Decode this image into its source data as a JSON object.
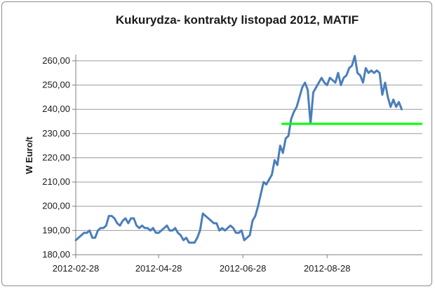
{
  "chart_data": {
    "type": "line",
    "title": "Kukurydza- kontrakty listopad 2012, MATIF",
    "xlabel": "",
    "ylabel": "W Euro/t",
    "ylim": [
      180,
      262
    ],
    "y_ticks": [
      180,
      190,
      200,
      210,
      220,
      230,
      240,
      250,
      260
    ],
    "y_tick_labels": [
      "180,00",
      "190,00",
      "200,00",
      "210,00",
      "220,00",
      "230,00",
      "240,00",
      "250,00",
      "260,00"
    ],
    "x_tick_labels": [
      "2012-02-28",
      "2012-04-28",
      "2012-06-28",
      "2012-08-28"
    ],
    "grid": true,
    "colors": {
      "series": "#4a7ebb",
      "reference": "#00ff00",
      "grid": "#9b9b9b",
      "axis": "#7f7f7f"
    },
    "series": [
      {
        "values": [
          [
            "2012-02-28",
            186
          ],
          [
            "2012-03-01",
            187
          ],
          [
            "2012-03-03",
            188
          ],
          [
            "2012-03-05",
            189
          ],
          [
            "2012-03-07",
            189
          ],
          [
            "2012-03-09",
            190
          ],
          [
            "2012-03-11",
            187
          ],
          [
            "2012-03-13",
            187
          ],
          [
            "2012-03-15",
            190
          ],
          [
            "2012-03-17",
            191
          ],
          [
            "2012-03-19",
            191
          ],
          [
            "2012-03-21",
            192
          ],
          [
            "2012-03-23",
            196
          ],
          [
            "2012-03-25",
            196
          ],
          [
            "2012-03-27",
            195
          ],
          [
            "2012-03-29",
            193
          ],
          [
            "2012-03-31",
            192
          ],
          [
            "2012-04-02",
            194
          ],
          [
            "2012-04-04",
            195
          ],
          [
            "2012-04-06",
            193
          ],
          [
            "2012-04-08",
            195
          ],
          [
            "2012-04-10",
            195
          ],
          [
            "2012-04-12",
            192
          ],
          [
            "2012-04-14",
            191
          ],
          [
            "2012-04-16",
            192
          ],
          [
            "2012-04-18",
            191
          ],
          [
            "2012-04-20",
            191
          ],
          [
            "2012-04-22",
            190
          ],
          [
            "2012-04-24",
            191
          ],
          [
            "2012-04-26",
            189
          ],
          [
            "2012-04-28",
            189
          ],
          [
            "2012-04-30",
            190
          ],
          [
            "2012-05-02",
            191
          ],
          [
            "2012-05-04",
            192
          ],
          [
            "2012-05-06",
            190
          ],
          [
            "2012-05-08",
            190
          ],
          [
            "2012-05-10",
            191
          ],
          [
            "2012-05-12",
            189
          ],
          [
            "2012-05-14",
            188
          ],
          [
            "2012-05-16",
            186
          ],
          [
            "2012-05-18",
            187
          ],
          [
            "2012-05-20",
            185
          ],
          [
            "2012-05-22",
            185
          ],
          [
            "2012-05-24",
            185
          ],
          [
            "2012-05-26",
            187
          ],
          [
            "2012-05-28",
            190
          ],
          [
            "2012-05-30",
            197
          ],
          [
            "2012-06-01",
            196
          ],
          [
            "2012-06-03",
            195
          ],
          [
            "2012-06-05",
            194
          ],
          [
            "2012-06-07",
            193
          ],
          [
            "2012-06-09",
            193
          ],
          [
            "2012-06-11",
            190
          ],
          [
            "2012-06-13",
            191
          ],
          [
            "2012-06-15",
            190
          ],
          [
            "2012-06-17",
            191
          ],
          [
            "2012-06-19",
            192
          ],
          [
            "2012-06-21",
            191
          ],
          [
            "2012-06-23",
            189
          ],
          [
            "2012-06-25",
            189
          ],
          [
            "2012-06-27",
            190
          ],
          [
            "2012-06-29",
            186
          ],
          [
            "2012-07-01",
            187
          ],
          [
            "2012-07-03",
            188
          ],
          [
            "2012-07-05",
            194
          ],
          [
            "2012-07-07",
            196
          ],
          [
            "2012-07-09",
            200
          ],
          [
            "2012-07-11",
            205
          ],
          [
            "2012-07-13",
            210
          ],
          [
            "2012-07-15",
            209
          ],
          [
            "2012-07-17",
            211
          ],
          [
            "2012-07-19",
            213
          ],
          [
            "2012-07-21",
            219
          ],
          [
            "2012-07-23",
            217
          ],
          [
            "2012-07-25",
            225
          ],
          [
            "2012-07-27",
            222
          ],
          [
            "2012-07-29",
            228
          ],
          [
            "2012-07-31",
            229
          ],
          [
            "2012-08-02",
            236
          ],
          [
            "2012-08-04",
            239
          ],
          [
            "2012-08-06",
            241
          ],
          [
            "2012-08-08",
            245
          ],
          [
            "2012-08-10",
            249
          ],
          [
            "2012-08-12",
            251
          ],
          [
            "2012-08-14",
            248
          ],
          [
            "2012-08-16",
            234
          ],
          [
            "2012-08-18",
            247
          ],
          [
            "2012-08-20",
            249
          ],
          [
            "2012-08-22",
            251
          ],
          [
            "2012-08-24",
            253
          ],
          [
            "2012-08-26",
            251
          ],
          [
            "2012-08-28",
            250
          ],
          [
            "2012-08-30",
            253
          ],
          [
            "2012-09-01",
            252
          ],
          [
            "2012-09-03",
            251
          ],
          [
            "2012-09-05",
            255
          ],
          [
            "2012-09-07",
            250
          ],
          [
            "2012-09-09",
            253
          ],
          [
            "2012-09-11",
            254
          ],
          [
            "2012-09-13",
            257
          ],
          [
            "2012-09-15",
            258
          ],
          [
            "2012-09-17",
            262
          ],
          [
            "2012-09-19",
            255
          ],
          [
            "2012-09-21",
            254
          ],
          [
            "2012-09-23",
            251
          ],
          [
            "2012-09-25",
            257
          ],
          [
            "2012-09-27",
            255
          ],
          [
            "2012-09-29",
            256
          ],
          [
            "2012-10-01",
            255
          ],
          [
            "2012-10-03",
            256
          ],
          [
            "2012-10-05",
            255
          ],
          [
            "2012-10-07",
            246
          ],
          [
            "2012-10-09",
            251
          ],
          [
            "2012-10-11",
            245
          ],
          [
            "2012-10-13",
            241
          ],
          [
            "2012-10-15",
            244
          ],
          [
            "2012-10-17",
            241
          ],
          [
            "2012-10-19",
            243
          ],
          [
            "2012-10-21",
            240
          ]
        ]
      }
    ],
    "reference_line": {
      "y": 234,
      "x_start": "2012-07-26",
      "x_end": "2012-11-05"
    }
  }
}
